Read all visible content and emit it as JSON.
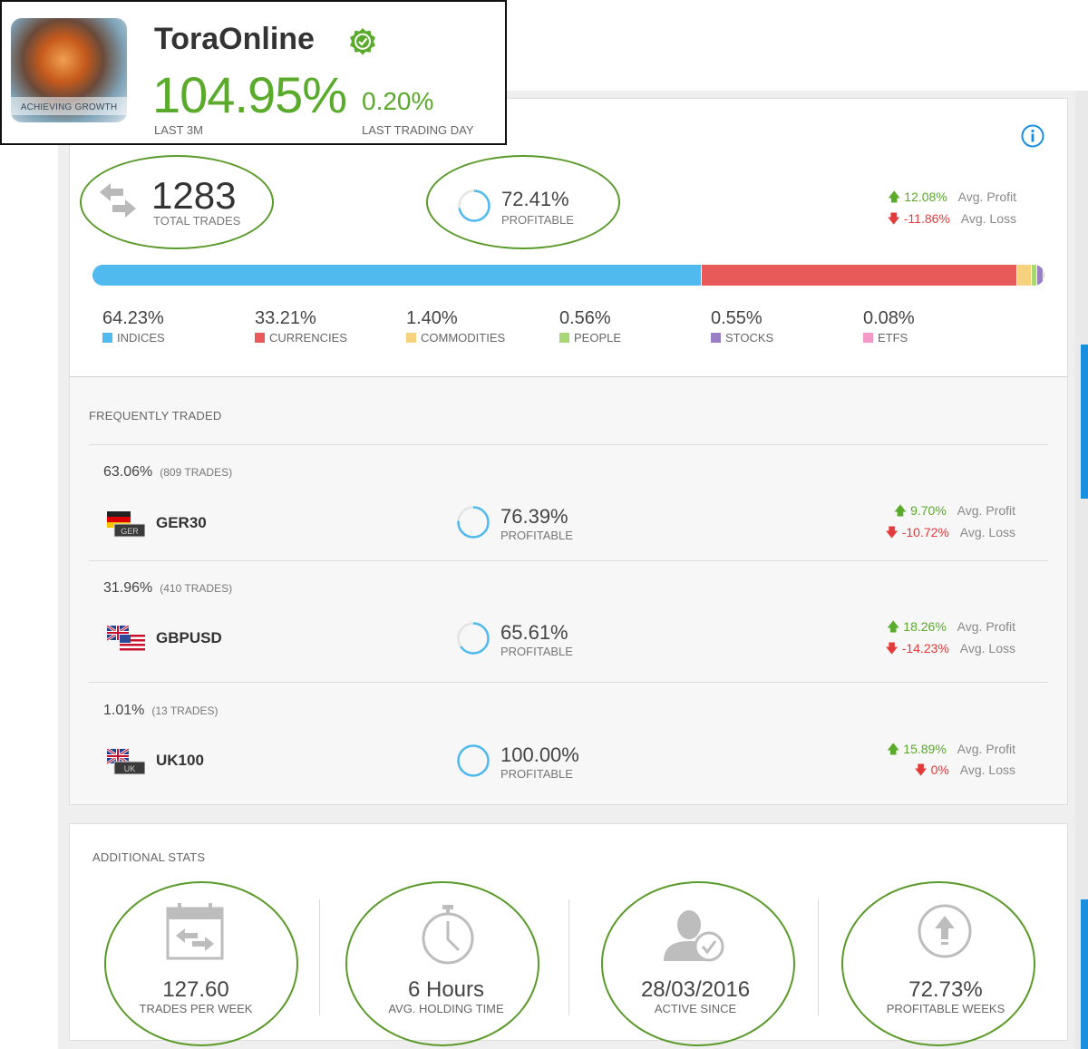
{
  "header": {
    "trader_name": "ToraOnline",
    "avatar_caption": "ACHIEVING GROWTH",
    "gain_3m": "104.95%",
    "gain_3m_label": "LAST 3M",
    "gain_day": "0.20%",
    "gain_day_label": "LAST TRADING DAY"
  },
  "summary": {
    "total_trades": "1283",
    "total_trades_label": "TOTAL TRADES",
    "profitable": "72.41%",
    "profitable_fraction": 0.7241,
    "profitable_label": "PROFITABLE",
    "avg_profit": "12.08%",
    "avg_profit_label": "Avg. Profit",
    "avg_loss": "-11.86%",
    "avg_loss_label": "Avg. Loss"
  },
  "allocation": [
    {
      "pct": "64.23%",
      "value": 64.23,
      "name": "INDICES",
      "color": "#50b9ee"
    },
    {
      "pct": "33.21%",
      "value": 33.21,
      "name": "CURRENCIES",
      "color": "#e85a5a"
    },
    {
      "pct": "1.40%",
      "value": 1.4,
      "name": "COMMODITIES",
      "color": "#f7d27e"
    },
    {
      "pct": "0.56%",
      "value": 0.56,
      "name": "PEOPLE",
      "color": "#a7d873"
    },
    {
      "pct": "0.55%",
      "value": 0.55,
      "name": "STOCKS",
      "color": "#9b7fc6"
    },
    {
      "pct": "0.08%",
      "value": 0.08,
      "name": "ETFS",
      "color": "#f59ac8"
    }
  ],
  "frequently_traded": {
    "title": "FREQUENTLY TRADED",
    "items": [
      {
        "share": "63.06%",
        "trades": "(809 TRADES)",
        "symbol": "GER30",
        "flag_text": "GER",
        "profitable": "76.39%",
        "profitable_fraction": 0.7639,
        "profitable_label": "PROFITABLE",
        "avg_profit": "9.70%",
        "avg_loss": "-10.72%",
        "avg_profit_label": "Avg. Profit",
        "avg_loss_label": "Avg. Loss"
      },
      {
        "share": "31.96%",
        "trades": "(410 TRADES)",
        "symbol": "GBPUSD",
        "flag_text": "",
        "profitable": "65.61%",
        "profitable_fraction": 0.6561,
        "profitable_label": "PROFITABLE",
        "avg_profit": "18.26%",
        "avg_loss": "-14.23%",
        "avg_profit_label": "Avg. Profit",
        "avg_loss_label": "Avg. Loss"
      },
      {
        "share": "1.01%",
        "trades": "(13 TRADES)",
        "symbol": "UK100",
        "flag_text": "UK",
        "profitable": "100.00%",
        "profitable_fraction": 1.0,
        "profitable_label": "PROFITABLE",
        "avg_profit": "15.89%",
        "avg_loss": "0%",
        "avg_profit_label": "Avg. Profit",
        "avg_loss_label": "Avg. Loss"
      }
    ]
  },
  "additional_stats": {
    "title": "ADDITIONAL STATS",
    "items": [
      {
        "value": "127.60",
        "label": "TRADES PER WEEK",
        "icon": "calendar-trades-icon"
      },
      {
        "value": "6 Hours",
        "label": "AVG. HOLDING TIME",
        "icon": "stopwatch-icon"
      },
      {
        "value": "28/03/2016",
        "label": "ACTIVE SINCE",
        "icon": "user-check-icon"
      },
      {
        "value": "72.73%",
        "label": "PROFITABLE WEEKS",
        "icon": "arrow-up-circle-icon"
      }
    ]
  },
  "colors": {
    "gain": "#5aaa2b",
    "loss": "#e23b3b",
    "accent": "#1a8fe0",
    "highlight": "#5a9a2a"
  }
}
